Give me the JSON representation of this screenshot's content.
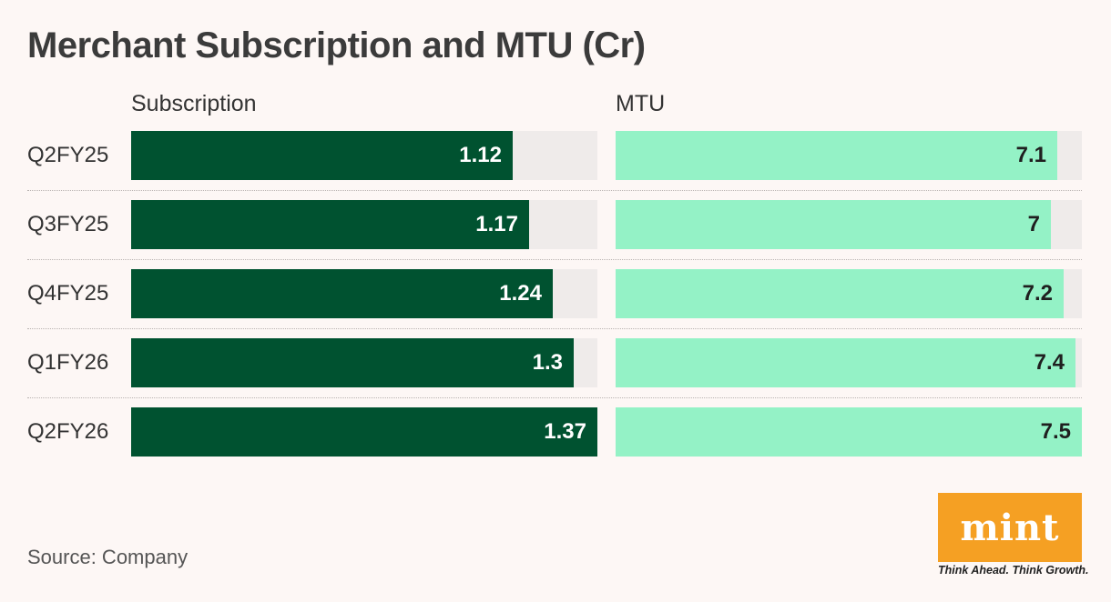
{
  "title": "Merchant Subscription and MTU (Cr)",
  "source": "Source: Company",
  "logo": {
    "brand": "mint",
    "tagline": "Think Ahead. Think Growth."
  },
  "colors": {
    "background": "#fdf7f5",
    "subscription_bar": "#005230",
    "mtu_bar": "#94f2c6",
    "track": "#efebea",
    "logo_bg": "#f5a023"
  },
  "chart_data": [
    {
      "type": "bar",
      "orientation": "horizontal",
      "title": "Subscription",
      "categories": [
        "Q2FY25",
        "Q3FY25",
        "Q4FY25",
        "Q1FY26",
        "Q2FY26"
      ],
      "values": [
        1.12,
        1.17,
        1.24,
        1.3,
        1.37
      ],
      "value_labels": [
        "1.12",
        "1.17",
        "1.24",
        "1.3",
        "1.37"
      ],
      "xlim": [
        0,
        1.37
      ]
    },
    {
      "type": "bar",
      "orientation": "horizontal",
      "title": "MTU",
      "categories": [
        "Q2FY25",
        "Q3FY25",
        "Q4FY25",
        "Q1FY26",
        "Q2FY26"
      ],
      "values": [
        7.1,
        7,
        7.2,
        7.4,
        7.5
      ],
      "value_labels": [
        "7.1",
        "7",
        "7.2",
        "7.4",
        "7.5"
      ],
      "xlim": [
        0,
        7.5
      ]
    }
  ]
}
